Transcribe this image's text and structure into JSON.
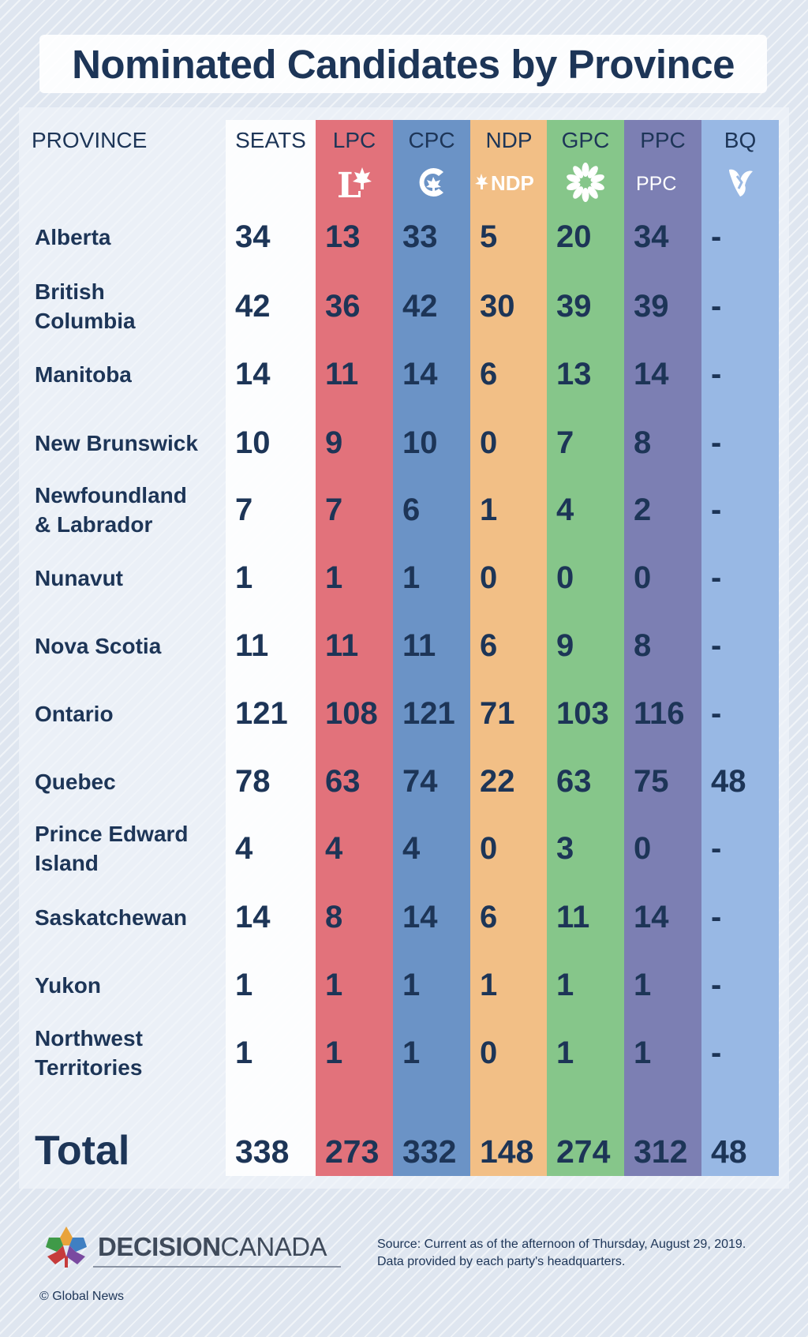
{
  "title": "Nominated Candidates by Province",
  "headers": {
    "province": "PROVINCE",
    "seats": "SEATS",
    "parties": [
      {
        "code": "LPC",
        "color": "#e2727b",
        "icon": "liberal-maple-leaf-icon"
      },
      {
        "code": "CPC",
        "color": "#6b93c6",
        "icon": "conservative-c-icon"
      },
      {
        "code": "NDP",
        "color": "#f2bf86",
        "icon": "ndp-wordmark-icon",
        "logo_text": "NDP"
      },
      {
        "code": "GPC",
        "color": "#86c68a",
        "icon": "green-flower-icon"
      },
      {
        "code": "PPC",
        "color": "#7c7fb3",
        "icon": "ppc-wordmark-icon",
        "logo_text": "PPC"
      },
      {
        "code": "BQ",
        "color": "#98b8e4",
        "icon": "bloc-fleur-icon"
      }
    ]
  },
  "chart_data": {
    "type": "table",
    "title": "Nominated Candidates by Province",
    "columns": [
      "PROVINCE",
      "SEATS",
      "LPC",
      "CPC",
      "NDP",
      "GPC",
      "PPC",
      "BQ"
    ],
    "rows": [
      {
        "province": "Alberta",
        "seats": "34",
        "values": [
          "13",
          "33",
          "5",
          "20",
          "34",
          "-"
        ]
      },
      {
        "province": "British\nColumbia",
        "seats": "42",
        "values": [
          "36",
          "42",
          "30",
          "39",
          "39",
          "-"
        ]
      },
      {
        "province": "Manitoba",
        "seats": "14",
        "values": [
          "11",
          "14",
          "6",
          "13",
          "14",
          "-"
        ]
      },
      {
        "province": "New Brunswick",
        "seats": "10",
        "values": [
          "9",
          "10",
          "0",
          "7",
          "8",
          "-"
        ]
      },
      {
        "province": "Newfoundland\n& Labrador",
        "seats": "7",
        "values": [
          "7",
          "6",
          "1",
          "4",
          "2",
          "-"
        ]
      },
      {
        "province": "Nunavut",
        "seats": "1",
        "values": [
          "1",
          "1",
          "0",
          "0",
          "0",
          "-"
        ]
      },
      {
        "province": "Nova Scotia",
        "seats": "11",
        "values": [
          "11",
          "11",
          "6",
          "9",
          "8",
          "-"
        ]
      },
      {
        "province": "Ontario",
        "seats": "121",
        "values": [
          "108",
          "121",
          "71",
          "103",
          "116",
          "-"
        ]
      },
      {
        "province": "Quebec",
        "seats": "78",
        "values": [
          "63",
          "74",
          "22",
          "63",
          "75",
          "48"
        ]
      },
      {
        "province": "Prince Edward\nIsland",
        "seats": "4",
        "values": [
          "4",
          "4",
          "0",
          "3",
          "0",
          "-"
        ]
      },
      {
        "province": "Saskatchewan",
        "seats": "14",
        "values": [
          "8",
          "14",
          "6",
          "11",
          "14",
          "-"
        ]
      },
      {
        "province": "Yukon",
        "seats": "1",
        "values": [
          "1",
          "1",
          "1",
          "1",
          "1",
          "-"
        ]
      },
      {
        "province": "Northwest\nTerritories",
        "seats": "1",
        "values": [
          "1",
          "1",
          "0",
          "1",
          "1",
          "-"
        ]
      }
    ],
    "total": {
      "label": "Total",
      "seats": "338",
      "values": [
        "273",
        "332",
        "148",
        "274",
        "312",
        "48"
      ]
    }
  },
  "footer": {
    "brand_bold": "DECISION",
    "brand_light": "CANADA",
    "source_line1": "Source: Current as of the afternoon of Thursday, August 29, 2019.",
    "source_line2": "Data provided by each party's headquarters.",
    "copyright": "© Global News"
  }
}
